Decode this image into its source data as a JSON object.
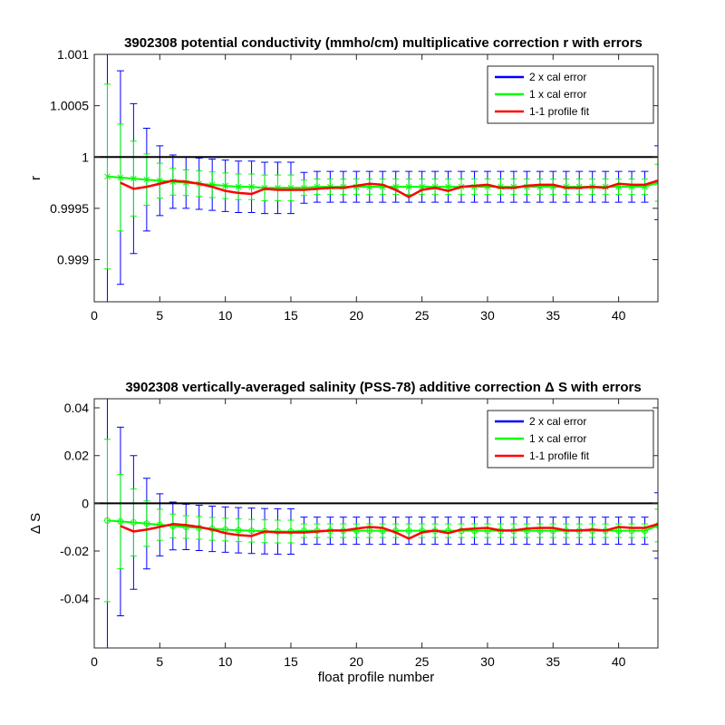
{
  "chart_data": [
    {
      "type": "line",
      "title": "3902308 potential conductivity (mmho/cm) multiplicative correction r with errors",
      "ylabel": "r",
      "x": [
        1,
        2,
        3,
        4,
        5,
        6,
        7,
        8,
        9,
        10,
        11,
        12,
        13,
        14,
        15,
        16,
        17,
        18,
        19,
        20,
        21,
        22,
        23,
        24,
        25,
        26,
        27,
        28,
        29,
        30,
        31,
        32,
        33,
        34,
        35,
        36,
        37,
        38,
        39,
        40,
        41,
        42,
        43
      ],
      "xlim": [
        0,
        43
      ],
      "xticks": [
        0,
        5,
        10,
        15,
        20,
        25,
        30,
        35,
        40
      ],
      "ylim": [
        0.99859,
        1.001
      ],
      "yticks": [
        0.999,
        0.9995,
        1,
        1.0005,
        1.001
      ],
      "hline": 1,
      "marker": "x",
      "legend": "upper right",
      "series": [
        {
          "name": "2 x cal error",
          "color": "#0000ff",
          "values": [
            0.99981,
            0.9998,
            0.99979,
            0.99978,
            0.99977,
            0.99976,
            0.99975,
            0.99974,
            0.99973,
            0.99972,
            0.99971,
            0.99971,
            0.9997,
            0.9997,
            0.9997,
            0.9997,
            0.99971,
            0.99971,
            0.99971,
            0.99971,
            0.99971,
            0.99971,
            0.99971,
            0.99971,
            0.99971,
            0.99971,
            0.99971,
            0.99971,
            0.99971,
            0.99971,
            0.99971,
            0.99971,
            0.99971,
            0.99971,
            0.99971,
            0.99971,
            0.99971,
            0.99971,
            0.99971,
            0.99971,
            0.99971,
            0.99971,
            0.99975
          ],
          "errors": [
            0.0018,
            0.00104,
            0.00073,
            0.0005,
            0.00034,
            0.00026,
            0.00025,
            0.00025,
            0.00025,
            0.00025,
            0.00025,
            0.00025,
            0.00025,
            0.00025,
            0.00025,
            0.00015,
            0.00015,
            0.00015,
            0.00015,
            0.00015,
            0.00015,
            0.00015,
            0.00015,
            0.00015,
            0.00015,
            0.00015,
            0.00015,
            0.00015,
            0.00015,
            0.00015,
            0.00015,
            0.00015,
            0.00015,
            0.00015,
            0.00015,
            0.00015,
            0.00015,
            0.00015,
            0.00015,
            0.00015,
            0.00015,
            0.00015,
            0.00036
          ]
        },
        {
          "name": "1 x cal error",
          "color": "#00ff00",
          "values": [
            0.99981,
            0.9998,
            0.99979,
            0.99978,
            0.99977,
            0.99976,
            0.99975,
            0.99974,
            0.99973,
            0.99972,
            0.99971,
            0.99971,
            0.9997,
            0.9997,
            0.9997,
            0.9997,
            0.99971,
            0.99971,
            0.99971,
            0.99971,
            0.99971,
            0.99971,
            0.99971,
            0.99971,
            0.99971,
            0.99971,
            0.99971,
            0.99971,
            0.99971,
            0.99971,
            0.99971,
            0.99971,
            0.99971,
            0.99971,
            0.99971,
            0.99971,
            0.99971,
            0.99971,
            0.99971,
            0.99971,
            0.99971,
            0.99971,
            0.99975
          ],
          "errors": [
            0.0009,
            0.00052,
            0.000365,
            0.00025,
            0.00017,
            0.00013,
            0.000125,
            0.000125,
            0.000125,
            0.000125,
            0.000125,
            0.000125,
            0.000125,
            0.000125,
            0.000125,
            7.5e-05,
            7.5e-05,
            7.5e-05,
            7.5e-05,
            7.5e-05,
            7.5e-05,
            7.5e-05,
            7.5e-05,
            7.5e-05,
            7.5e-05,
            7.5e-05,
            7.5e-05,
            7.5e-05,
            7.5e-05,
            7.5e-05,
            7.5e-05,
            7.5e-05,
            7.5e-05,
            7.5e-05,
            7.5e-05,
            7.5e-05,
            7.5e-05,
            7.5e-05,
            7.5e-05,
            7.5e-05,
            7.5e-05,
            7.5e-05,
            0.00018
          ]
        },
        {
          "name": "1-1 profile fit",
          "color": "#ff0000",
          "values": [
            null,
            0.99975,
            0.99969,
            0.99971,
            0.99974,
            0.99977,
            0.99976,
            0.99974,
            0.99971,
            0.99967,
            0.99965,
            0.99964,
            0.99969,
            0.99968,
            0.99968,
            0.99968,
            0.99969,
            0.9997,
            0.9997,
            0.99972,
            0.99974,
            0.99973,
            0.99968,
            0.99961,
            0.99968,
            0.9997,
            0.99967,
            0.99971,
            0.99972,
            0.99973,
            0.9997,
            0.9997,
            0.99972,
            0.99973,
            0.99973,
            0.9997,
            0.9997,
            0.99971,
            0.9997,
            0.99974,
            0.99973,
            0.99973,
            0.99977
          ]
        }
      ]
    },
    {
      "type": "line",
      "title": "3902308 vertically-averaged salinity (PSS-78) additive correction Δ S with errors",
      "ylabel": "Δ S",
      "xlabel": "float profile number",
      "x": [
        1,
        2,
        3,
        4,
        5,
        6,
        7,
        8,
        9,
        10,
        11,
        12,
        13,
        14,
        15,
        16,
        17,
        18,
        19,
        20,
        21,
        22,
        23,
        24,
        25,
        26,
        27,
        28,
        29,
        30,
        31,
        32,
        33,
        34,
        35,
        36,
        37,
        38,
        39,
        40,
        41,
        42,
        43
      ],
      "xlim": [
        0,
        43
      ],
      "xticks": [
        0,
        5,
        10,
        15,
        20,
        25,
        30,
        35,
        40
      ],
      "ylim": [
        -0.0606,
        0.0438
      ],
      "yticks": [
        -0.04,
        -0.02,
        0,
        0.02,
        0.04
      ],
      "hline": 0,
      "marker": "o",
      "legend": "upper right",
      "series": [
        {
          "name": "2 x cal error",
          "color": "#0000ff",
          "values": [
            -0.0072,
            -0.0076,
            -0.008,
            -0.0085,
            -0.009,
            -0.0095,
            -0.0099,
            -0.0103,
            -0.0107,
            -0.011,
            -0.0113,
            -0.0115,
            -0.0117,
            -0.0118,
            -0.0118,
            -0.0115,
            -0.0115,
            -0.0115,
            -0.0115,
            -0.0115,
            -0.0115,
            -0.0115,
            -0.0115,
            -0.0115,
            -0.0115,
            -0.0115,
            -0.0115,
            -0.0115,
            -0.0115,
            -0.0115,
            -0.0115,
            -0.0115,
            -0.0115,
            -0.0115,
            -0.0115,
            -0.0115,
            -0.0115,
            -0.0115,
            -0.0115,
            -0.0115,
            -0.0115,
            -0.0115,
            -0.0093
          ],
          "errors": [
            0.068,
            0.0395,
            0.028,
            0.019,
            0.013,
            0.01,
            0.0095,
            0.0095,
            0.0095,
            0.0095,
            0.0095,
            0.0095,
            0.0095,
            0.0095,
            0.0095,
            0.0057,
            0.0057,
            0.0057,
            0.0057,
            0.0057,
            0.0057,
            0.0057,
            0.0057,
            0.0057,
            0.0057,
            0.0057,
            0.0057,
            0.0057,
            0.0057,
            0.0057,
            0.0057,
            0.0057,
            0.0057,
            0.0057,
            0.0057,
            0.0057,
            0.0057,
            0.0057,
            0.0057,
            0.0057,
            0.0057,
            0.0057,
            0.0137
          ]
        },
        {
          "name": "1 x cal error",
          "color": "#00ff00",
          "values": [
            -0.0072,
            -0.0076,
            -0.008,
            -0.0085,
            -0.009,
            -0.0095,
            -0.0099,
            -0.0103,
            -0.0107,
            -0.011,
            -0.0113,
            -0.0115,
            -0.0117,
            -0.0118,
            -0.0118,
            -0.0115,
            -0.0115,
            -0.0115,
            -0.0115,
            -0.0115,
            -0.0115,
            -0.0115,
            -0.0115,
            -0.0115,
            -0.0115,
            -0.0115,
            -0.0115,
            -0.0115,
            -0.0115,
            -0.0115,
            -0.0115,
            -0.0115,
            -0.0115,
            -0.0115,
            -0.0115,
            -0.0115,
            -0.0115,
            -0.0115,
            -0.0115,
            -0.0115,
            -0.0115,
            -0.0115,
            -0.0093
          ],
          "errors": [
            0.034,
            0.01975,
            0.014,
            0.0095,
            0.0065,
            0.005,
            0.00475,
            0.00475,
            0.00475,
            0.00475,
            0.00475,
            0.00475,
            0.00475,
            0.00475,
            0.00475,
            0.00285,
            0.00285,
            0.00285,
            0.00285,
            0.00285,
            0.00285,
            0.00285,
            0.00285,
            0.00285,
            0.00285,
            0.00285,
            0.00285,
            0.00285,
            0.00285,
            0.00285,
            0.00285,
            0.00285,
            0.00285,
            0.00285,
            0.00285,
            0.00285,
            0.00285,
            0.00285,
            0.00285,
            0.00285,
            0.00285,
            0.00285,
            0.00685
          ]
        },
        {
          "name": "1-1 profile fit",
          "color": "#ff0000",
          "values": [
            null,
            -0.0095,
            -0.0118,
            -0.011,
            -0.0099,
            -0.0087,
            -0.0091,
            -0.0099,
            -0.011,
            -0.0125,
            -0.0133,
            -0.0137,
            -0.0118,
            -0.0122,
            -0.0122,
            -0.0122,
            -0.0118,
            -0.0114,
            -0.0114,
            -0.0106,
            -0.0099,
            -0.0103,
            -0.0122,
            -0.0148,
            -0.0122,
            -0.0114,
            -0.0125,
            -0.011,
            -0.0106,
            -0.0103,
            -0.0114,
            -0.0114,
            -0.0106,
            -0.0103,
            -0.0103,
            -0.0114,
            -0.0114,
            -0.011,
            -0.0114,
            -0.0099,
            -0.0103,
            -0.0103,
            -0.0087
          ]
        }
      ]
    }
  ]
}
